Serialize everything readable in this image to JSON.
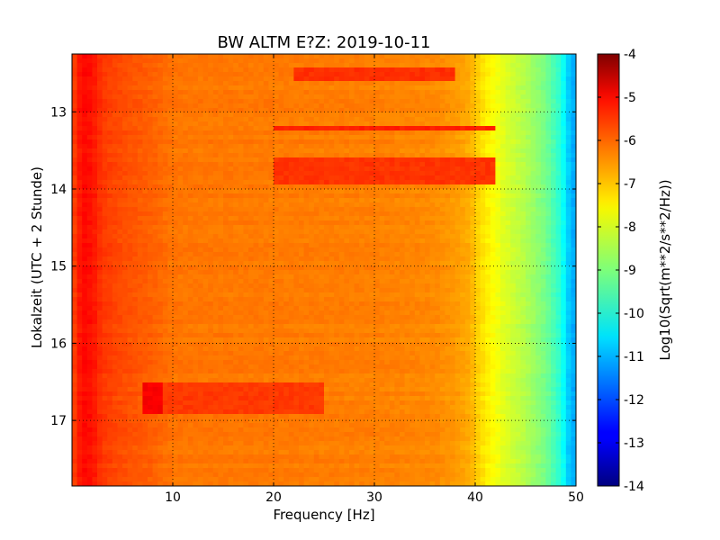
{
  "chart_data": {
    "type": "heatmap",
    "title": "BW ALTM E?Z: 2019-10-11",
    "xlabel": "Frequency [Hz]",
    "ylabel": "Lokalzeit (UTC + 2 Stunde)",
    "xlim": [
      0,
      50
    ],
    "ylim": [
      12.25,
      17.85
    ],
    "y_inverted": true,
    "x_ticks": [
      "10",
      "20",
      "30",
      "40",
      "50"
    ],
    "x_tick_values": [
      10,
      20,
      30,
      40,
      50
    ],
    "y_ticks": [
      "13",
      "14",
      "15",
      "16",
      "17"
    ],
    "y_tick_values": [
      13,
      14,
      15,
      16,
      17
    ],
    "grid": true,
    "grid_style": "dotted",
    "colormap": "jet",
    "colorbar": {
      "label": "Log10(Sqrt(m**2/s**2/Hz))",
      "range": [
        -14,
        -4
      ],
      "ticks": [
        "-4",
        "-5",
        "-6",
        "-7",
        "-8",
        "-9",
        "-10",
        "-11",
        "-12",
        "-13",
        "-14"
      ],
      "tick_values": [
        -4,
        -5,
        -6,
        -7,
        -8,
        -9,
        -10,
        -11,
        -12,
        -13,
        -14
      ]
    },
    "spectral_profile": {
      "frequency_hz": [
        0,
        1,
        2,
        3,
        5,
        8,
        10,
        20,
        30,
        36,
        38,
        39.5,
        40.5,
        41.5,
        43,
        45,
        47,
        48.5,
        49.3,
        50
      ],
      "log10_amplitude": [
        -6.0,
        -5.3,
        -5.4,
        -5.8,
        -6.0,
        -6.2,
        -6.4,
        -6.45,
        -6.5,
        -6.6,
        -6.75,
        -6.95,
        -7.4,
        -7.7,
        -8.1,
        -8.5,
        -9.1,
        -9.9,
        -10.8,
        -11.2
      ]
    },
    "bands": [
      {
        "time_from": 12.4,
        "time_to": 12.6,
        "freq_from": 22,
        "freq_to": 38,
        "log10_amplitude": -5.7
      },
      {
        "time_from": 13.2,
        "time_to": 13.25,
        "freq_from": 20,
        "freq_to": 42,
        "log10_amplitude": -5.55
      },
      {
        "time_from": 13.6,
        "time_to": 13.95,
        "freq_from": 20,
        "freq_to": 42,
        "log10_amplitude": -5.75
      },
      {
        "time_from": 16.5,
        "time_to": 16.9,
        "freq_from": 7,
        "freq_to": 25,
        "log10_amplitude": -5.8
      },
      {
        "time_from": 16.5,
        "time_to": 16.9,
        "freq_from": 7,
        "freq_to": 9,
        "log10_amplitude": -5.2
      }
    ]
  }
}
